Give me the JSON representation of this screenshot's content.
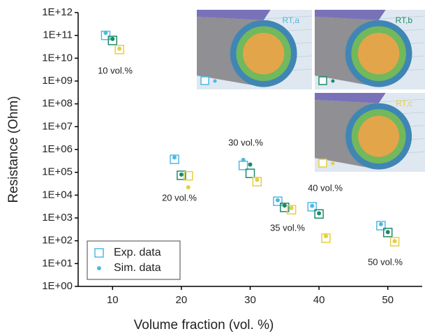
{
  "chart_data": {
    "type": "scatter",
    "x_label": "Volume fraction (vol. %)",
    "y_label": "Resistance (Ohm)",
    "y_scale": "log",
    "xlim": [
      5,
      55
    ],
    "xticks": [
      10,
      20,
      30,
      40,
      50
    ],
    "ylim": [
      1,
      1000000000000
    ],
    "yticks": [
      {
        "value": 1,
        "label": "1E+00"
      },
      {
        "value": 10,
        "label": "1E+01"
      },
      {
        "value": 100,
        "label": "1E+02"
      },
      {
        "value": 1000,
        "label": "1E+03"
      },
      {
        "value": 10000,
        "label": "1E+04"
      },
      {
        "value": 100000,
        "label": "1E+05"
      },
      {
        "value": 1000000,
        "label": "1E+06"
      },
      {
        "value": 10000000,
        "label": "1E+07"
      },
      {
        "value": 100000000,
        "label": "1E+08"
      },
      {
        "value": 1000000000,
        "label": "1E+09"
      },
      {
        "value": 10000000000,
        "label": "1E+10"
      },
      {
        "value": 100000000000,
        "label": "1E+11"
      },
      {
        "value": 1000000000000,
        "label": "1E+12"
      }
    ],
    "x": [
      9,
      10,
      11,
      19,
      20,
      21,
      29,
      30,
      31,
      34,
      35,
      36,
      39,
      40,
      41,
      49,
      50,
      51
    ],
    "series": [
      {
        "name": "Exp. data",
        "marker": "open-square",
        "color": "#4fb9e3",
        "colors": [
          "#4fb9e3",
          "#1b8a6b",
          "#e5cf3e",
          "#4fb9e3",
          "#1b8a6b",
          "#e5cf3e",
          "#4fb9e3",
          "#1b8a6b",
          "#e5cf3e",
          "#4fb9e3",
          "#1b8a6b",
          "#e5cf3e",
          "#4fb9e3",
          "#1b8a6b",
          "#e5cf3e",
          "#4fb9e3",
          "#1b8a6b",
          "#e5cf3e"
        ],
        "values": [
          100000000000,
          60000000000,
          24000000000,
          370000,
          74000,
          70000,
          200000,
          90000,
          39000,
          5400,
          2900,
          2300,
          3100,
          1500,
          130,
          460,
          230,
          91
        ]
      },
      {
        "name": "Sim. data",
        "marker": "dot",
        "color": "#4fb9e3",
        "colors": [
          "#4fb9e3",
          "#1b8a6b",
          "#e5cf3e",
          "#4fb9e3",
          "#1b8a6b",
          "#e5cf3e",
          "#4fb9e3",
          "#1b8a6b",
          "#e5cf3e",
          "#4fb9e3",
          "#1b8a6b",
          "#e5cf3e",
          "#4fb9e3",
          "#1b8a6b",
          "#e5cf3e",
          "#4fb9e3",
          "#1b8a6b",
          "#e5cf3e"
        ],
        "values": [
          130000000000,
          70000000000,
          26000000000,
          450000,
          80000,
          22000,
          350000,
          220000,
          47000,
          6000,
          3500,
          2700,
          3400,
          1600,
          160,
          530,
          240,
          97
        ]
      }
    ],
    "annotations": [
      "10 vol.%",
      "20 vol.%",
      "30 vol.%",
      "35 vol.%",
      "40 vol.%",
      "50 vol.%"
    ],
    "insets": [
      {
        "label": "RT,a",
        "color": "#4fb9e3"
      },
      {
        "label": "RT,b",
        "color": "#1b8a6b"
      },
      {
        "label": "RT,c",
        "color": "#e5cf3e"
      }
    ],
    "legend": "lower left"
  }
}
